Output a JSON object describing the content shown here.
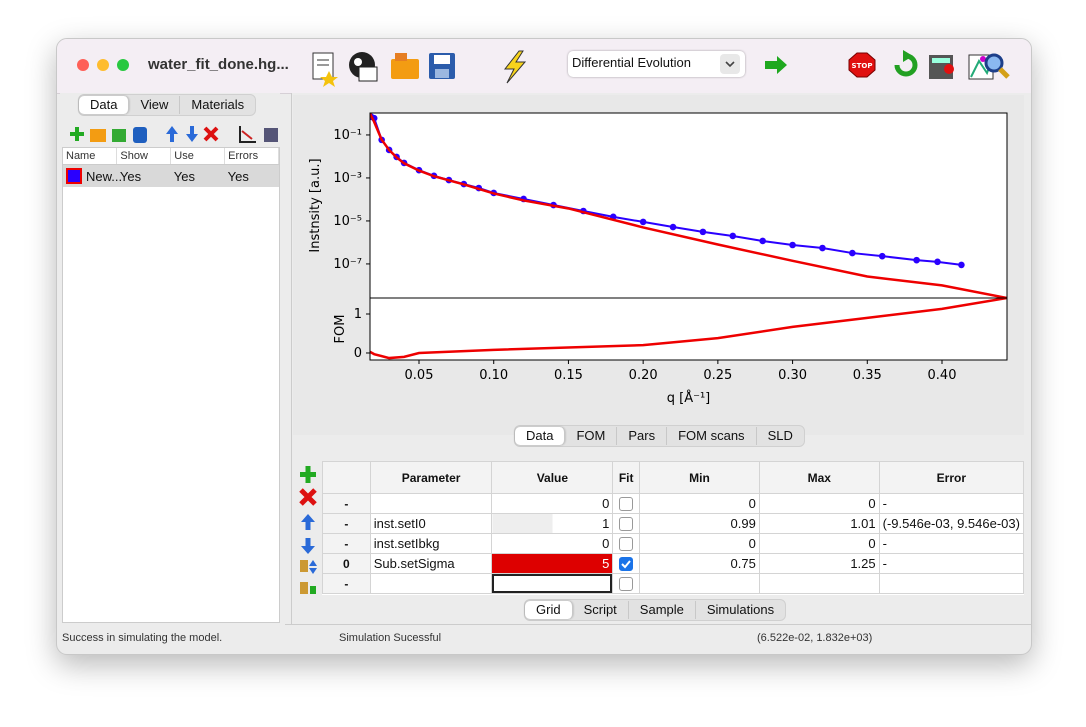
{
  "window": {
    "title": "water_fit_done.hg...",
    "optimizer": "Differential Evolution"
  },
  "left_panel": {
    "tabs": [
      "Data",
      "View",
      "Materials"
    ],
    "columns": [
      "Name",
      "Show",
      "Use",
      "Errors"
    ],
    "rows": [
      [
        "New...",
        "Yes",
        "Yes",
        "Yes"
      ]
    ]
  },
  "chart_data": [
    {
      "type": "line",
      "ylabel": "Instnsity [a.u.]",
      "xlim": [
        0.0172,
        0.4435
      ],
      "ylim": [
        2.6e-09,
        1.05
      ],
      "yscale": "log",
      "yticks": [
        {
          "value": 0.1,
          "label": "10⁻¹"
        },
        {
          "value": 0.001,
          "label": "10⁻³"
        },
        {
          "value": 1e-05,
          "label": "10⁻⁵"
        },
        {
          "value": 1e-07,
          "label": "10⁻⁷"
        }
      ],
      "series": [
        {
          "color": "#2a00ff",
          "marker": true,
          "x": [
            0.018,
            0.02,
            0.025,
            0.03,
            0.035,
            0.04,
            0.05,
            0.06,
            0.07,
            0.08,
            0.09,
            0.1,
            0.12,
            0.14,
            0.16,
            0.18,
            0.2,
            0.22,
            0.24,
            0.26,
            0.28,
            0.3,
            0.32,
            0.34,
            0.36,
            0.383,
            0.397,
            0.413
          ],
          "values": [
            0.7,
            0.6,
            0.059,
            0.02,
            0.0095,
            0.005,
            0.0023,
            0.00126,
            0.0008,
            0.00052,
            0.00034,
            0.0002,
            0.000105,
            5.5e-05,
            2.9e-05,
            1.55e-05,
            9e-06,
            5.2e-06,
            3.1e-06,
            2e-06,
            1.17e-06,
            7.6e-07,
            5.5e-07,
            3.2e-07,
            2.3e-07,
            1.5e-07,
            1.25e-07,
            9e-08
          ]
        },
        {
          "color": "#ee0000",
          "marker": false,
          "x": [
            0.0172,
            0.02,
            0.025,
            0.03,
            0.035,
            0.04,
            0.05,
            0.06,
            0.08,
            0.1,
            0.12,
            0.15,
            0.2,
            0.25,
            0.3,
            0.35,
            0.4,
            0.4435
          ],
          "values": [
            1.0,
            0.4,
            0.06,
            0.02,
            0.009,
            0.0048,
            0.0022,
            0.0012,
            0.0005,
            0.00019,
            9e-05,
            3.8e-05,
            5e-06,
            8e-07,
            1.4e-07,
            2.6e-08,
            1e-08,
            2.6e-09
          ]
        }
      ]
    },
    {
      "type": "line",
      "ylabel": "FOM",
      "xlabel": "q [Å⁻¹]",
      "xlim": [
        0.0172,
        0.4435
      ],
      "ylim": [
        -0.18,
        1.41
      ],
      "yticks": [
        0,
        1
      ],
      "xticks": [
        0.05,
        {
          "value": 0.1,
          "label": "0.10"
        },
        0.15,
        {
          "value": 0.2,
          "label": "0.20"
        },
        0.25,
        {
          "value": 0.3,
          "label": "0.30"
        },
        0.35,
        {
          "value": 0.4,
          "label": "0.40"
        }
      ],
      "series": [
        {
          "color": "#ee0000",
          "marker": false,
          "x": [
            0.0172,
            0.02,
            0.03,
            0.04,
            0.05,
            0.1,
            0.2,
            0.25,
            0.3,
            0.35,
            0.4,
            0.4435
          ],
          "values": [
            0.03,
            -0.03,
            -0.13,
            -0.1,
            0.0,
            0.08,
            0.2,
            0.38,
            0.67,
            0.9,
            1.13,
            1.41
          ]
        }
      ]
    }
  ],
  "plot_tabs": [
    "Data",
    "FOM",
    "Pars",
    "FOM scans",
    "SLD"
  ],
  "grid": {
    "columns": [
      "Parameter",
      "Value",
      "Fit",
      "Min",
      "Max",
      "Error"
    ],
    "rows": [
      {
        "label": "-",
        "value": "0",
        "fit": false,
        "min": "0",
        "max": "0",
        "error": "-"
      },
      {
        "label": "-",
        "parameter": "inst.setI0",
        "value": "1",
        "fit": false,
        "min": "0.99",
        "max": "1.01",
        "error": "(-9.546e-03, 9.546e-03)"
      },
      {
        "label": "-",
        "parameter": "inst.setIbkg",
        "value": "0",
        "fit": false,
        "min": "0",
        "max": "0",
        "error": "-"
      },
      {
        "label": "0",
        "parameter": "Sub.setSigma",
        "value": "5",
        "fit": true,
        "min": "0.75",
        "max": "1.25",
        "error": "-"
      },
      {
        "label": "-",
        "fit": false
      }
    ]
  },
  "bottom_tabs": [
    "Grid",
    "Script",
    "Sample",
    "Simulations"
  ],
  "status": [
    "Success in simulating the model.",
    "Simulation Sucessful",
    "(6.522e-02, 1.832e+03)"
  ]
}
